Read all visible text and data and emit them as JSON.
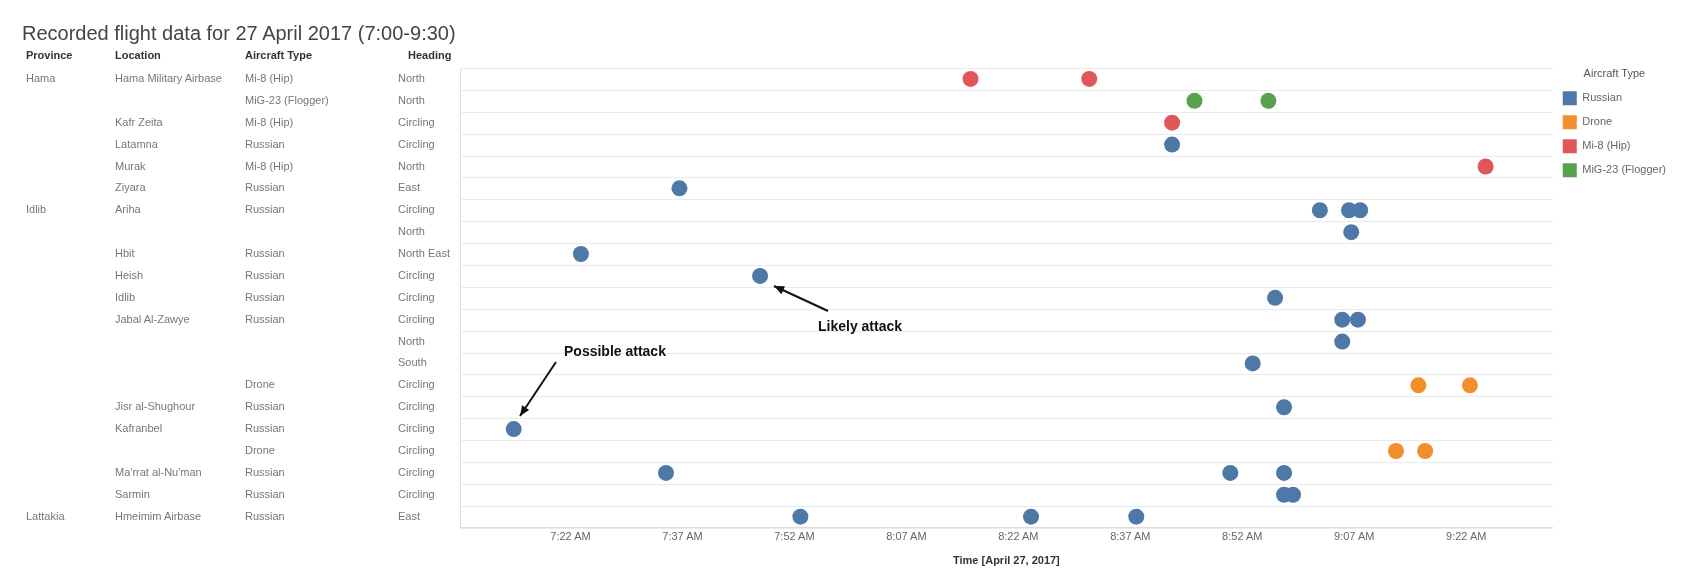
{
  "chart_data": {
    "type": "scatter",
    "orientation": "horizontal",
    "title": "Recorded flight data for 27 April 2017 (7:00-9:30)",
    "xlabel": "Time [April 27, 2017]",
    "legend_title": "Aircraft Type",
    "legend": "top right",
    "grid": "y",
    "marker": "circle",
    "categories": [
      "North",
      "North",
      "Circling",
      "Circling",
      "North",
      "East",
      "Circling",
      "North",
      "North East",
      "Circling",
      "Circling",
      "Circling",
      "North",
      "South",
      "Circling",
      "Circling",
      "Circling",
      "Circling",
      "Circling",
      "Circling",
      "East"
    ],
    "xlim": [
      7.12,
      9.56
    ],
    "xticks": [
      {
        "value": 7.3667,
        "label": "7:22 AM"
      },
      {
        "value": 7.6167,
        "label": "7:37 AM"
      },
      {
        "value": 7.8667,
        "label": "7:52 AM"
      },
      {
        "value": 8.1167,
        "label": "8:07 AM"
      },
      {
        "value": 8.3667,
        "label": "8:22 AM"
      },
      {
        "value": 8.6167,
        "label": "8:37 AM"
      },
      {
        "value": 8.8667,
        "label": "8:52 AM"
      },
      {
        "value": 9.1167,
        "label": "9:07 AM"
      },
      {
        "value": 9.3667,
        "label": "9:22 AM"
      }
    ],
    "series": [
      {
        "name": "Russian",
        "color": "#4e79a7",
        "values": [
          null,
          null,
          null,
          8.71,
          null,
          7.61,
          9.04,
          9.11,
          7.39,
          7.79,
          8.94,
          9.09,
          9.09,
          8.89,
          null,
          8.96,
          7.24,
          null,
          7.58,
          8.96,
          7.88
        ]
      },
      {
        "name": "Drone",
        "color": "#f28e2b",
        "values": [
          null,
          null,
          null,
          null,
          null,
          null,
          null,
          null,
          null,
          null,
          null,
          null,
          null,
          null,
          9.26,
          null,
          null,
          9.21,
          null,
          null,
          null
        ]
      },
      {
        "name": "Mi-8 (Hip)",
        "color": "#e15759",
        "values": [
          8.26,
          null,
          8.71,
          null,
          9.41,
          null,
          null,
          null,
          null,
          null,
          null,
          null,
          null,
          null,
          null,
          null,
          null,
          null,
          null,
          null,
          null
        ]
      },
      {
        "name": "MiG-23 (Flogger)",
        "color": "#59a14f",
        "values": [
          null,
          8.76,
          null,
          null,
          null,
          null,
          null,
          null,
          null,
          null,
          null,
          null,
          null,
          null,
          null,
          null,
          null,
          null,
          null,
          null,
          null
        ]
      },
      {
        "color": "#4e79a7",
        "values": [
          null,
          null,
          null,
          null,
          null,
          null,
          9.105,
          null,
          null,
          null,
          null,
          9.125,
          null,
          null,
          null,
          null,
          null,
          null,
          8.84,
          8.98,
          8.395
        ]
      },
      {
        "color": "#4e79a7",
        "values": [
          null,
          null,
          null,
          null,
          null,
          null,
          9.13,
          null,
          null,
          null,
          null,
          null,
          null,
          null,
          null,
          null,
          null,
          null,
          8.96,
          null,
          8.63
        ]
      },
      {
        "color": "#f28e2b",
        "values": [
          null,
          null,
          null,
          null,
          null,
          null,
          null,
          null,
          null,
          null,
          null,
          null,
          null,
          null,
          9.375,
          null,
          null,
          9.275,
          null,
          null,
          null
        ]
      },
      {
        "color": "#e15759",
        "values": [
          8.525,
          null,
          null,
          null,
          null,
          null,
          null,
          null,
          null,
          null,
          null,
          null,
          null,
          null,
          null,
          null,
          null,
          null,
          null,
          null,
          null
        ]
      },
      {
        "color": "#59a14f",
        "values": [
          null,
          8.925,
          null,
          null,
          null,
          null,
          null,
          null,
          null,
          null,
          null,
          null,
          null,
          null,
          null,
          null,
          null,
          null,
          null,
          null,
          null
        ]
      }
    ],
    "annotations": [
      "Likely attack",
      "Possible attack",
      "Province",
      "Location",
      "Aircraft Type",
      "Heading",
      "Hama",
      "Hama Military Airbase",
      "Mi-8 (Hip)",
      "MiG-23 (Flogger)",
      "Kafr Zeita",
      "Mi-8 (Hip)",
      "Latamna",
      "Russian",
      "Murak",
      "Mi-8 (Hip)",
      "Ziyara",
      "Russian",
      "Idlib",
      "Ariha",
      "Russian",
      "Hbit",
      "Russian",
      "Heish",
      "Russian",
      "Idlib",
      "Russian",
      "Jabal Al-Zawye",
      "Russian",
      "Drone",
      "Jisr al-Shughour",
      "Russian",
      "Kafranbel",
      "Russian",
      "Drone",
      "Ma'rrat al-Nu'man",
      "Russian",
      "Sarmin",
      "Russian",
      "Lattakia",
      "Hmeimim Airbase",
      "Russian"
    ]
  }
}
